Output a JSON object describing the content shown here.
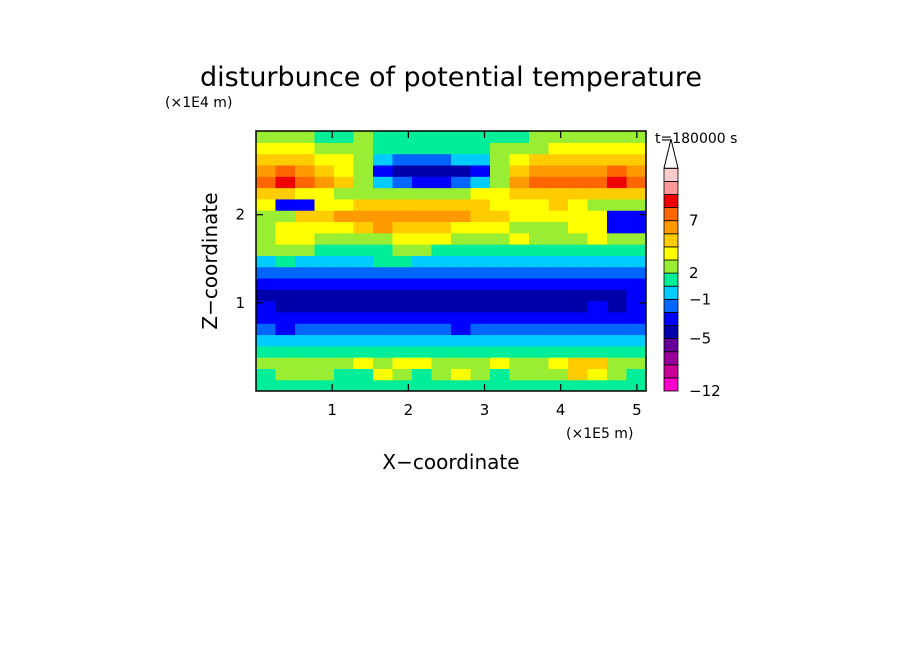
{
  "chart_data": {
    "type": "heatmap",
    "title": "disturbunce of potential temperature",
    "time_label": "t=180000 s",
    "xlabel": "X−coordinate",
    "ylabel": "Z−coordinate",
    "x_unit": "(×1E5 m)",
    "y_unit": "(×1E4 m)",
    "xlim": [
      0,
      5.12
    ],
    "ylim": [
      0,
      2.95
    ],
    "x_ticks": [
      {
        "value": 1,
        "label": "1"
      },
      {
        "value": 2,
        "label": "2"
      },
      {
        "value": 3,
        "label": "3"
      },
      {
        "value": 4,
        "label": "4"
      },
      {
        "value": 5,
        "label": "5"
      }
    ],
    "y_ticks": [
      {
        "value": 1,
        "label": "1"
      },
      {
        "value": 2,
        "label": "2"
      }
    ],
    "colorbar": {
      "bins": [
        "#ff00cc",
        "#cc0099",
        "#990099",
        "#660099",
        "#0000aa",
        "#0000ff",
        "#0066ff",
        "#00ccff",
        "#00ee99",
        "#99ee33",
        "#ffff00",
        "#ffcc00",
        "#ff9900",
        "#ff6600",
        "#ee0000",
        "#ff9999",
        "#ffcccc"
      ],
      "labels": [
        {
          "bin": 0,
          "text": "−12"
        },
        {
          "bin": 4,
          "text": "−5"
        },
        {
          "bin": 7,
          "text": "−1"
        },
        {
          "bin": 9,
          "text": "2"
        },
        {
          "bin": 13,
          "text": "7"
        }
      ],
      "extends_max": true
    },
    "field": {
      "note": "approximate level index (0–16) per row, bottom (z≈0) to top (z≈2.95), 20 columns across x",
      "rows": [
        [
          8,
          8,
          8,
          8,
          8,
          8,
          8,
          8,
          8,
          8,
          8,
          8,
          8,
          8,
          8,
          8,
          8,
          8,
          8,
          8
        ],
        [
          8,
          9,
          9,
          9,
          8,
          8,
          10,
          9,
          8,
          9,
          10,
          9,
          8,
          9,
          9,
          9,
          11,
          10,
          9,
          8
        ],
        [
          9,
          9,
          9,
          9,
          9,
          10,
          9,
          10,
          10,
          9,
          9,
          9,
          10,
          9,
          9,
          10,
          11,
          11,
          9,
          9
        ],
        [
          8,
          8,
          8,
          8,
          8,
          8,
          8,
          8,
          8,
          8,
          8,
          8,
          8,
          8,
          8,
          8,
          8,
          8,
          8,
          8
        ],
        [
          7,
          7,
          7,
          7,
          7,
          7,
          7,
          7,
          7,
          7,
          7,
          7,
          7,
          7,
          7,
          7,
          7,
          7,
          7,
          7
        ],
        [
          6,
          5,
          6,
          6,
          6,
          6,
          6,
          6,
          6,
          6,
          5,
          6,
          6,
          6,
          6,
          6,
          6,
          6,
          6,
          6
        ],
        [
          5,
          5,
          5,
          5,
          5,
          5,
          5,
          5,
          5,
          5,
          5,
          5,
          5,
          5,
          5,
          5,
          5,
          5,
          5,
          5
        ],
        [
          5,
          4,
          4,
          4,
          4,
          4,
          4,
          4,
          4,
          4,
          4,
          4,
          4,
          4,
          4,
          4,
          4,
          5,
          4,
          5
        ],
        [
          4,
          4,
          4,
          4,
          4,
          4,
          4,
          4,
          4,
          4,
          4,
          4,
          4,
          4,
          4,
          4,
          4,
          4,
          4,
          5
        ],
        [
          5,
          5,
          5,
          5,
          5,
          5,
          5,
          5,
          5,
          5,
          5,
          5,
          5,
          5,
          5,
          5,
          5,
          5,
          5,
          5
        ],
        [
          6,
          6,
          6,
          6,
          6,
          6,
          6,
          6,
          6,
          6,
          6,
          6,
          6,
          6,
          6,
          6,
          6,
          6,
          6,
          6
        ],
        [
          7,
          8,
          7,
          7,
          7,
          7,
          8,
          8,
          7,
          7,
          7,
          7,
          7,
          7,
          7,
          7,
          7,
          7,
          7,
          7
        ],
        [
          9,
          9,
          9,
          8,
          8,
          8,
          8,
          9,
          9,
          8,
          8,
          8,
          8,
          8,
          8,
          8,
          8,
          8,
          8,
          8
        ],
        [
          9,
          10,
          10,
          9,
          9,
          9,
          9,
          10,
          10,
          10,
          9,
          9,
          9,
          10,
          9,
          9,
          9,
          10,
          9,
          9
        ],
        [
          9,
          10,
          10,
          10,
          10,
          11,
          12,
          11,
          11,
          11,
          10,
          10,
          10,
          9,
          9,
          9,
          10,
          10,
          5,
          5
        ],
        [
          9,
          9,
          11,
          11,
          12,
          12,
          12,
          12,
          12,
          12,
          12,
          11,
          11,
          10,
          10,
          10,
          10,
          10,
          5,
          5
        ],
        [
          10,
          5,
          5,
          10,
          10,
          11,
          11,
          11,
          11,
          11,
          11,
          11,
          10,
          10,
          10,
          11,
          10,
          9,
          9,
          9
        ],
        [
          11,
          11,
          10,
          10,
          9,
          9,
          9,
          9,
          9,
          9,
          9,
          10,
          10,
          11,
          11,
          11,
          11,
          11,
          11,
          11
        ],
        [
          13,
          14,
          13,
          12,
          11,
          9,
          7,
          6,
          5,
          5,
          6,
          7,
          9,
          12,
          13,
          13,
          13,
          13,
          14,
          13
        ],
        [
          12,
          13,
          12,
          11,
          10,
          9,
          5,
          4,
          4,
          4,
          4,
          5,
          9,
          11,
          12,
          12,
          12,
          12,
          13,
          12
        ],
        [
          11,
          11,
          11,
          10,
          10,
          9,
          7,
          6,
          6,
          6,
          7,
          7,
          9,
          10,
          11,
          11,
          11,
          11,
          11,
          11
        ],
        [
          10,
          10,
          10,
          9,
          9,
          9,
          8,
          8,
          8,
          8,
          8,
          8,
          9,
          9,
          9,
          10,
          10,
          10,
          10,
          10
        ],
        [
          9,
          9,
          9,
          8,
          8,
          9,
          8,
          8,
          8,
          8,
          8,
          8,
          8,
          8,
          9,
          9,
          9,
          9,
          9,
          9
        ]
      ]
    }
  }
}
